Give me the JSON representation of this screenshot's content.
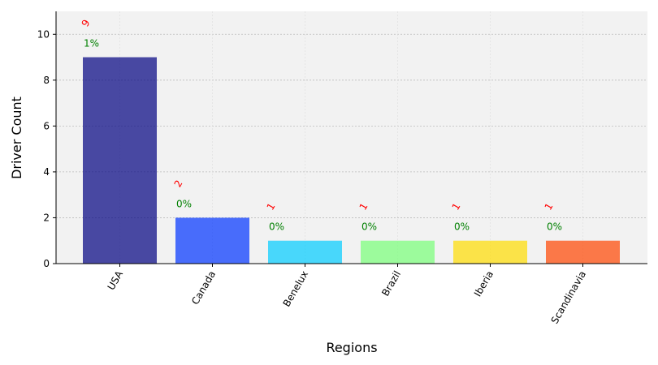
{
  "chart_data": {
    "type": "bar",
    "title": "",
    "xlabel": "Regions",
    "ylabel": "Driver Count",
    "categories": [
      "USA",
      "Canada",
      "Benelux",
      "Brazil",
      "Iberia",
      "Scandinavia"
    ],
    "values": [
      9,
      2,
      1,
      1,
      1,
      1
    ],
    "count_labels": [
      "9",
      "2",
      "1",
      "1",
      "1",
      "1"
    ],
    "percent_labels": [
      "1%",
      "0%",
      "0%",
      "0%",
      "0%",
      "0%"
    ],
    "colors": [
      "#000080",
      "#0033ff",
      "#00ccff",
      "#77ff77",
      "#ffdd00",
      "#ff4400"
    ],
    "ylim": [
      0,
      11
    ],
    "yticks": [
      0,
      2,
      4,
      6,
      8,
      10
    ],
    "grid": true,
    "plot_background": "#f2f2f2",
    "legend": "none"
  }
}
